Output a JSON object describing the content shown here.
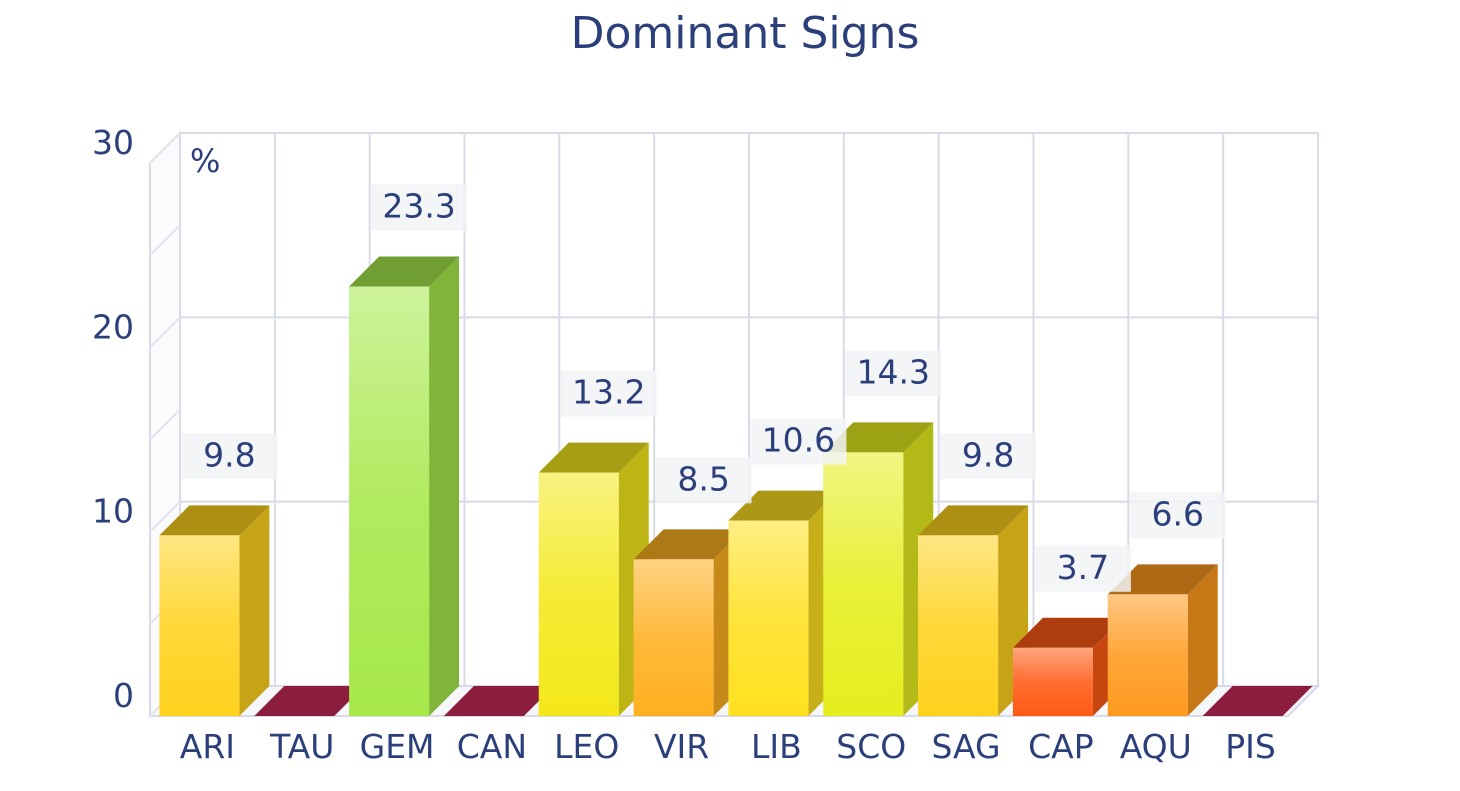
{
  "chart_data": {
    "type": "bar",
    "title": "Dominant Signs",
    "y_unit": "%",
    "ylim": [
      0,
      30
    ],
    "yticks": [
      0,
      10,
      20,
      30
    ],
    "grid": true,
    "categories": [
      "ARI",
      "TAU",
      "GEM",
      "CAN",
      "LEO",
      "VIR",
      "LIB",
      "SCO",
      "SAG",
      "CAP",
      "AQU",
      "PIS"
    ],
    "values": [
      9.8,
      0,
      23.3,
      0,
      13.2,
      8.5,
      10.6,
      14.3,
      9.8,
      3.7,
      6.6,
      0
    ],
    "data_labels": [
      "9.8",
      "",
      "23.3",
      "",
      "13.2",
      "8.5",
      "10.6",
      "14.3",
      "9.8",
      "3.7",
      "6.6",
      ""
    ],
    "colors": {
      "ARI": "#ffd21e",
      "TAU": "#8b1e3c",
      "GEM": "#a6e84a",
      "CAN": "#8b1e3c",
      "LEO": "#f4e81a",
      "VIR": "#ffb020",
      "LIB": "#ffe020",
      "SCO": "#e6ee1e",
      "SAG": "#ffd21e",
      "CAP": "#ff5a14",
      "AQU": "#ff9a1e",
      "PIS": "#8b1e3c"
    }
  }
}
